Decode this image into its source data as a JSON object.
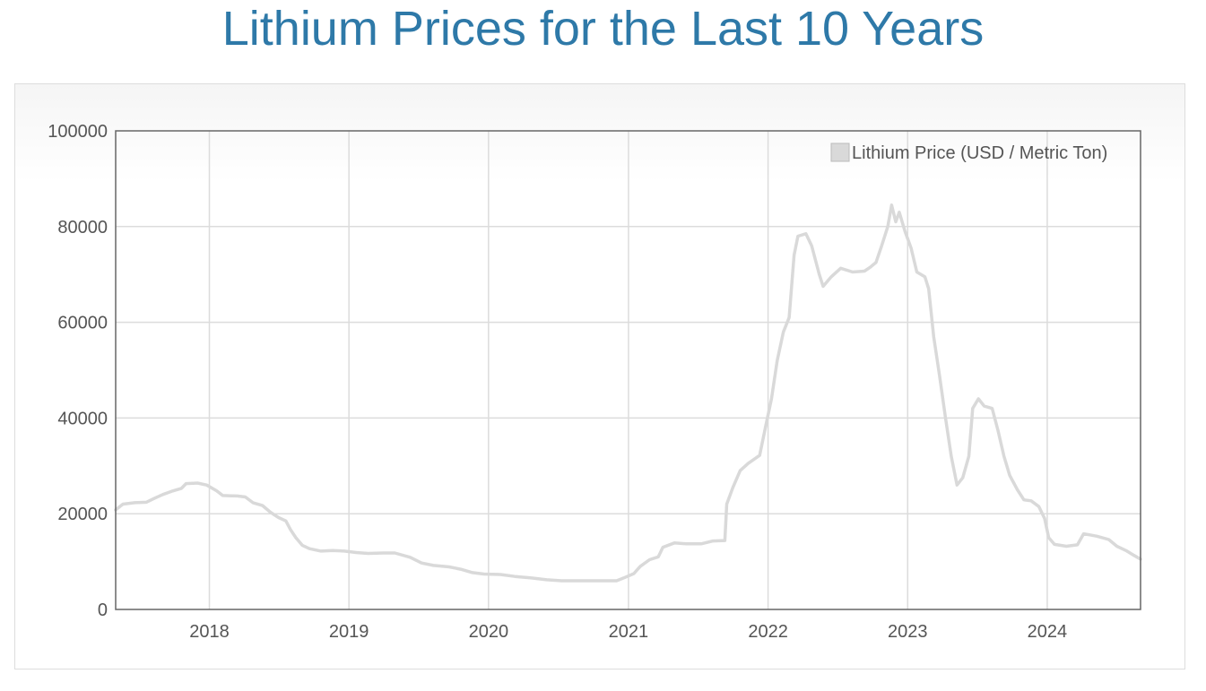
{
  "page": {
    "title": "Lithium Prices for the Last 10 Years"
  },
  "colors": {
    "title": "#2e79a8",
    "series": "#d9d9d9",
    "grid": "#dcdcdc",
    "axis_border": "#666666",
    "tick_text": "#555555"
  },
  "chart_data": {
    "type": "line",
    "title": "Lithium Prices for the Last 10 Years",
    "xlabel": "",
    "ylabel": "",
    "xlim": [
      "2017-05-01",
      "2024-09-01"
    ],
    "ylim": [
      0,
      100000
    ],
    "grid": true,
    "legend": {
      "position": "top-right",
      "entries": [
        "Lithium Price (USD / Metric Ton)"
      ]
    },
    "x_ticks": [
      "2018",
      "2019",
      "2020",
      "2021",
      "2022",
      "2023",
      "2024"
    ],
    "y_ticks": [
      "0",
      "20000",
      "40000",
      "60000",
      "80000",
      "100000"
    ],
    "series": [
      {
        "name": "Lithium Price (USD / Metric Ton)",
        "color": "#d9d9d9",
        "points": [
          [
            "2017-05-01",
            20800
          ],
          [
            "2017-05-20",
            22000
          ],
          [
            "2017-06-20",
            22300
          ],
          [
            "2017-07-20",
            22400
          ],
          [
            "2017-08-10",
            23200
          ],
          [
            "2017-09-01",
            24000
          ],
          [
            "2017-09-25",
            24700
          ],
          [
            "2017-10-20",
            25300
          ],
          [
            "2017-11-01",
            26300
          ],
          [
            "2017-12-01",
            26400
          ],
          [
            "2017-12-25",
            26000
          ],
          [
            "2018-01-20",
            24800
          ],
          [
            "2018-02-05",
            23800
          ],
          [
            "2018-03-15",
            23700
          ],
          [
            "2018-04-05",
            23500
          ],
          [
            "2018-04-25",
            22300
          ],
          [
            "2018-05-20",
            21700
          ],
          [
            "2018-06-10",
            20300
          ],
          [
            "2018-07-01",
            19200
          ],
          [
            "2018-07-20",
            18500
          ],
          [
            "2018-08-01",
            16700
          ],
          [
            "2018-08-15",
            15000
          ],
          [
            "2018-09-01",
            13400
          ],
          [
            "2018-09-20",
            12700
          ],
          [
            "2018-10-20",
            12200
          ],
          [
            "2018-11-20",
            12300
          ],
          [
            "2018-12-20",
            12200
          ],
          [
            "2019-01-20",
            11900
          ],
          [
            "2019-02-20",
            11700
          ],
          [
            "2019-04-01",
            11800
          ],
          [
            "2019-05-01",
            11800
          ],
          [
            "2019-06-10",
            10900
          ],
          [
            "2019-07-10",
            9700
          ],
          [
            "2019-08-10",
            9200
          ],
          [
            "2019-09-20",
            8900
          ],
          [
            "2019-10-20",
            8400
          ],
          [
            "2019-11-20",
            7700
          ],
          [
            "2019-12-20",
            7400
          ],
          [
            "2020-02-01",
            7300
          ],
          [
            "2020-03-10",
            6900
          ],
          [
            "2020-04-20",
            6600
          ],
          [
            "2020-06-01",
            6200
          ],
          [
            "2020-07-10",
            6000
          ],
          [
            "2020-09-01",
            6000
          ],
          [
            "2020-10-20",
            6000
          ],
          [
            "2020-12-01",
            6000
          ],
          [
            "2020-12-20",
            6600
          ],
          [
            "2021-01-15",
            7500
          ],
          [
            "2021-02-01",
            9000
          ],
          [
            "2021-02-25",
            10400
          ],
          [
            "2021-03-20",
            11000
          ],
          [
            "2021-04-01",
            13000
          ],
          [
            "2021-05-01",
            13900
          ],
          [
            "2021-06-01",
            13700
          ],
          [
            "2021-07-10",
            13700
          ],
          [
            "2021-08-10",
            14300
          ],
          [
            "2021-09-10",
            14400
          ],
          [
            "2021-09-15",
            22000
          ],
          [
            "2021-10-01",
            25500
          ],
          [
            "2021-10-20",
            29000
          ],
          [
            "2021-11-10",
            30500
          ],
          [
            "2021-12-10",
            32200
          ],
          [
            "2021-12-25",
            38000
          ],
          [
            "2022-01-10",
            44000
          ],
          [
            "2022-01-25",
            52000
          ],
          [
            "2022-02-10",
            58000
          ],
          [
            "2022-02-25",
            61000
          ],
          [
            "2022-03-10",
            74000
          ],
          [
            "2022-03-20",
            78000
          ],
          [
            "2022-04-10",
            78500
          ],
          [
            "2022-04-25",
            76000
          ],
          [
            "2022-05-15",
            70000
          ],
          [
            "2022-05-25",
            67500
          ],
          [
            "2022-06-15",
            69500
          ],
          [
            "2022-07-10",
            71300
          ],
          [
            "2022-08-10",
            70500
          ],
          [
            "2022-09-10",
            70700
          ],
          [
            "2022-09-25",
            71500
          ],
          [
            "2022-10-10",
            72500
          ],
          [
            "2022-10-25",
            76000
          ],
          [
            "2022-11-10",
            80000
          ],
          [
            "2022-11-20",
            84500
          ],
          [
            "2022-12-01",
            81000
          ],
          [
            "2022-12-10",
            83000
          ],
          [
            "2022-12-25",
            79000
          ],
          [
            "2023-01-10",
            75500
          ],
          [
            "2023-01-25",
            70500
          ],
          [
            "2023-02-15",
            69500
          ],
          [
            "2023-02-25",
            67000
          ],
          [
            "2023-03-10",
            57000
          ],
          [
            "2023-03-25",
            49000
          ],
          [
            "2023-04-10",
            40000
          ],
          [
            "2023-04-25",
            32000
          ],
          [
            "2023-05-10",
            26000
          ],
          [
            "2023-05-25",
            27500
          ],
          [
            "2023-06-10",
            32000
          ],
          [
            "2023-06-20",
            42000
          ],
          [
            "2023-07-05",
            44000
          ],
          [
            "2023-07-20",
            42500
          ],
          [
            "2023-08-10",
            42000
          ],
          [
            "2023-08-25",
            37500
          ],
          [
            "2023-09-10",
            32000
          ],
          [
            "2023-09-25",
            28000
          ],
          [
            "2023-10-15",
            25000
          ],
          [
            "2023-11-01",
            22900
          ],
          [
            "2023-11-20",
            22700
          ],
          [
            "2023-12-10",
            21500
          ],
          [
            "2023-12-25",
            19000
          ],
          [
            "2024-01-05",
            15000
          ],
          [
            "2024-01-20",
            13600
          ],
          [
            "2024-02-20",
            13200
          ],
          [
            "2024-03-20",
            13500
          ],
          [
            "2024-04-05",
            15800
          ],
          [
            "2024-04-20",
            15600
          ],
          [
            "2024-05-10",
            15300
          ],
          [
            "2024-06-10",
            14600
          ],
          [
            "2024-07-01",
            13200
          ],
          [
            "2024-07-25",
            12300
          ],
          [
            "2024-08-15",
            11300
          ],
          [
            "2024-09-01",
            10500
          ]
        ]
      }
    ]
  }
}
